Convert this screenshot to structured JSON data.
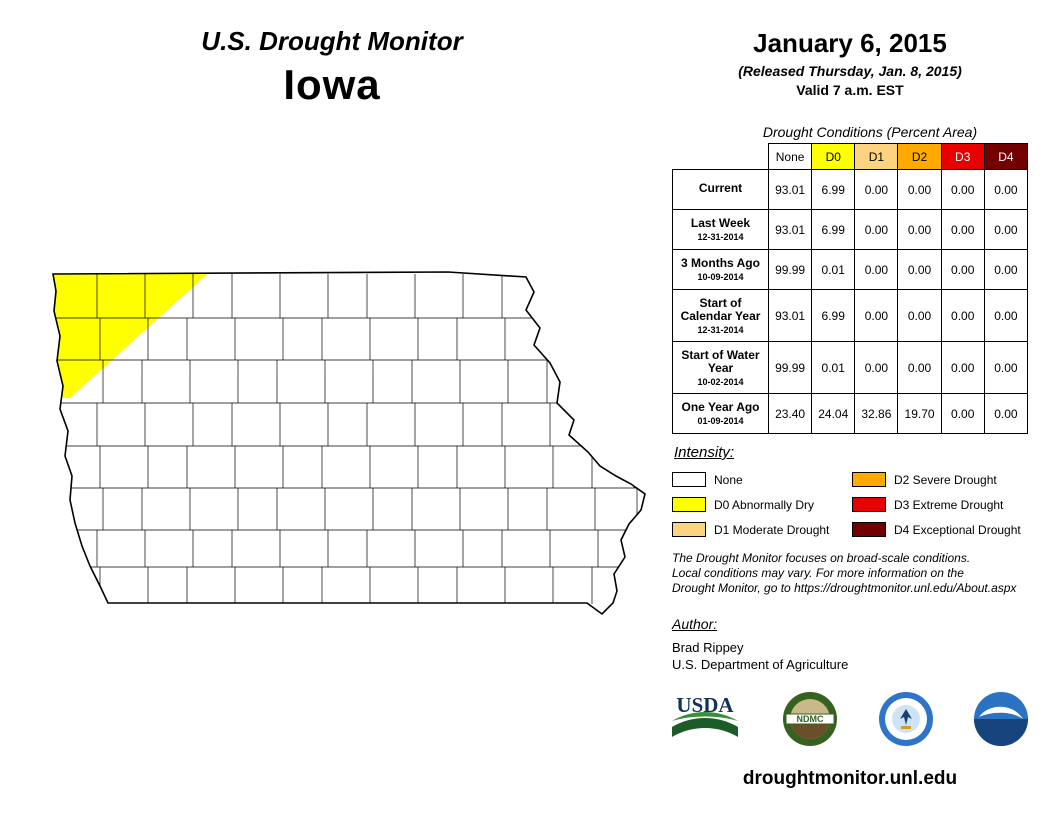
{
  "header": {
    "title": "U.S. Drought Monitor",
    "state": "Iowa",
    "date": "January 6, 2015",
    "released": "(Released Thursday, Jan. 8, 2015)",
    "valid": "Valid 7 a.m. EST"
  },
  "table": {
    "caption": "Drought Conditions (Percent Area)",
    "columns": [
      "None",
      "D0",
      "D1",
      "D2",
      "D3",
      "D4"
    ],
    "rows": [
      {
        "label": "Current",
        "sublabel": "",
        "values": [
          "93.01",
          "6.99",
          "0.00",
          "0.00",
          "0.00",
          "0.00"
        ]
      },
      {
        "label": "Last Week",
        "sublabel": "12-31-2014",
        "values": [
          "93.01",
          "6.99",
          "0.00",
          "0.00",
          "0.00",
          "0.00"
        ]
      },
      {
        "label": "3 Months Ago",
        "sublabel": "10-09-2014",
        "values": [
          "99.99",
          "0.01",
          "0.00",
          "0.00",
          "0.00",
          "0.00"
        ]
      },
      {
        "label": "Start of Calendar Year",
        "sublabel": "12-31-2014",
        "values": [
          "93.01",
          "6.99",
          "0.00",
          "0.00",
          "0.00",
          "0.00"
        ]
      },
      {
        "label": "Start of Water Year",
        "sublabel": "10-02-2014",
        "values": [
          "99.99",
          "0.01",
          "0.00",
          "0.00",
          "0.00",
          "0.00"
        ]
      },
      {
        "label": "One Year Ago",
        "sublabel": "01-09-2014",
        "values": [
          "23.40",
          "24.04",
          "32.86",
          "19.70",
          "0.00",
          "0.00"
        ]
      }
    ]
  },
  "legend": {
    "title": "Intensity:",
    "items": [
      {
        "label": "None",
        "color": "#FFFFFF"
      },
      {
        "label": "D0 Abnormally Dry",
        "color": "#FFFF00"
      },
      {
        "label": "D1 Moderate Drought",
        "color": "#FCD37F"
      },
      {
        "label": "D2 Severe Drought",
        "color": "#FFAA00"
      },
      {
        "label": "D3 Extreme Drought",
        "color": "#E60000"
      },
      {
        "label": "D4 Exceptional Drought",
        "color": "#730000"
      }
    ]
  },
  "map": {
    "state": "Iowa",
    "d0_color": "#FFFF00",
    "d0_area": "northwest corner"
  },
  "disclaimer": {
    "lines": [
      "The Drought Monitor focuses on broad-scale conditions.",
      "Local conditions may vary. For more information on the",
      "Drought Monitor, go to https://droughtmonitor.unl.edu/About.aspx"
    ]
  },
  "author": {
    "heading": "Author:",
    "name": "Brad Rippey",
    "organization": "U.S. Department of Agriculture"
  },
  "logos": {
    "usda": "USDA",
    "ndmc": "NDMC"
  },
  "footer": {
    "url": "droughtmonitor.unl.edu"
  }
}
